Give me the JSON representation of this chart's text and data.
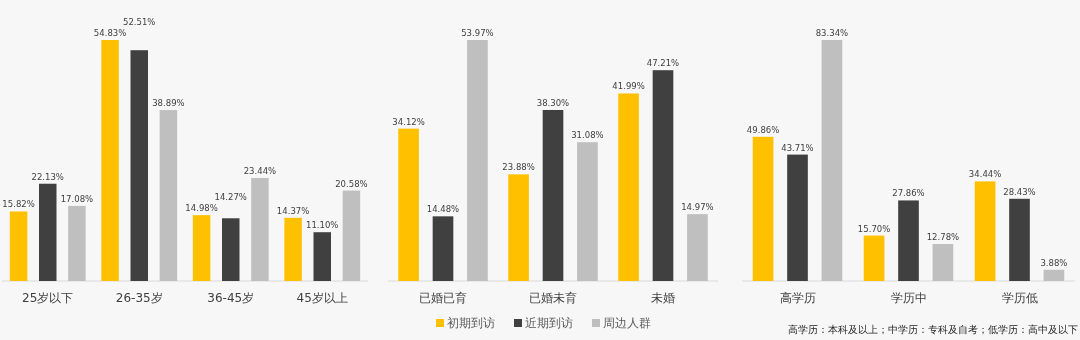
{
  "chart_data": [
    {
      "type": "bar",
      "categories": [
        "25岁以下",
        "26-35岁",
        "36-45岁",
        "45岁以上"
      ],
      "data_labels": true,
      "legend": false,
      "series": [
        {
          "color": "#ffc000",
          "values": [
            15.82,
            54.83,
            14.98,
            14.37
          ],
          "value_labels": [
            "15.82%",
            "54.83%",
            "14.98%",
            "14.37%"
          ]
        },
        {
          "color": "#404040",
          "values": [
            22.13,
            52.51,
            14.27,
            11.1
          ],
          "value_labels": [
            "22.13%",
            "52.51%",
            "14.27%",
            "11.10%"
          ]
        },
        {
          "color": "#bfbfbf",
          "values": [
            17.08,
            38.89,
            23.44,
            20.58
          ],
          "value_labels": [
            "17.08%",
            "38.89%",
            "23.44%",
            "20.58%"
          ]
        }
      ]
    },
    {
      "type": "bar",
      "categories": [
        "已婚已育",
        "已婚未育",
        "未婚"
      ],
      "data_labels": true,
      "legend": "bottom",
      "series": [
        {
          "name": "初期到访",
          "color": "#ffc000",
          "values": [
            34.12,
            23.88,
            41.99
          ],
          "value_labels": [
            "34.12%",
            "23.88%",
            "41.99%"
          ]
        },
        {
          "name": "近期到访",
          "color": "#404040",
          "values": [
            14.48,
            38.3,
            47.21
          ],
          "value_labels": [
            "14.48%",
            "38.30%",
            "47.21%"
          ]
        },
        {
          "name": "周边人群",
          "color": "#bfbfbf",
          "values": [
            53.97,
            31.08,
            14.97
          ],
          "value_labels": [
            "53.97%",
            "31.08%",
            "14.97%"
          ]
        }
      ]
    },
    {
      "type": "bar",
      "categories": [
        "高学历",
        "学历中",
        "学历低"
      ],
      "data_labels": true,
      "legend": false,
      "annotations": [
        "高学历：本科及以上；中学历：专科及自考；低学历：高中及以下"
      ],
      "series": [
        {
          "color": "#ffc000",
          "values": [
            49.86,
            15.7,
            34.44
          ],
          "value_labels": [
            "49.86%",
            "15.70%",
            "34.44%"
          ]
        },
        {
          "color": "#404040",
          "values": [
            43.71,
            27.86,
            28.43
          ],
          "value_labels": [
            "43.71%",
            "27.86%",
            "28.43%"
          ]
        },
        {
          "color": "#bfbfbf",
          "values": [
            83.34,
            12.78,
            3.88
          ],
          "value_labels": [
            "83.34%",
            "12.78%",
            "3.88%"
          ]
        }
      ]
    }
  ]
}
